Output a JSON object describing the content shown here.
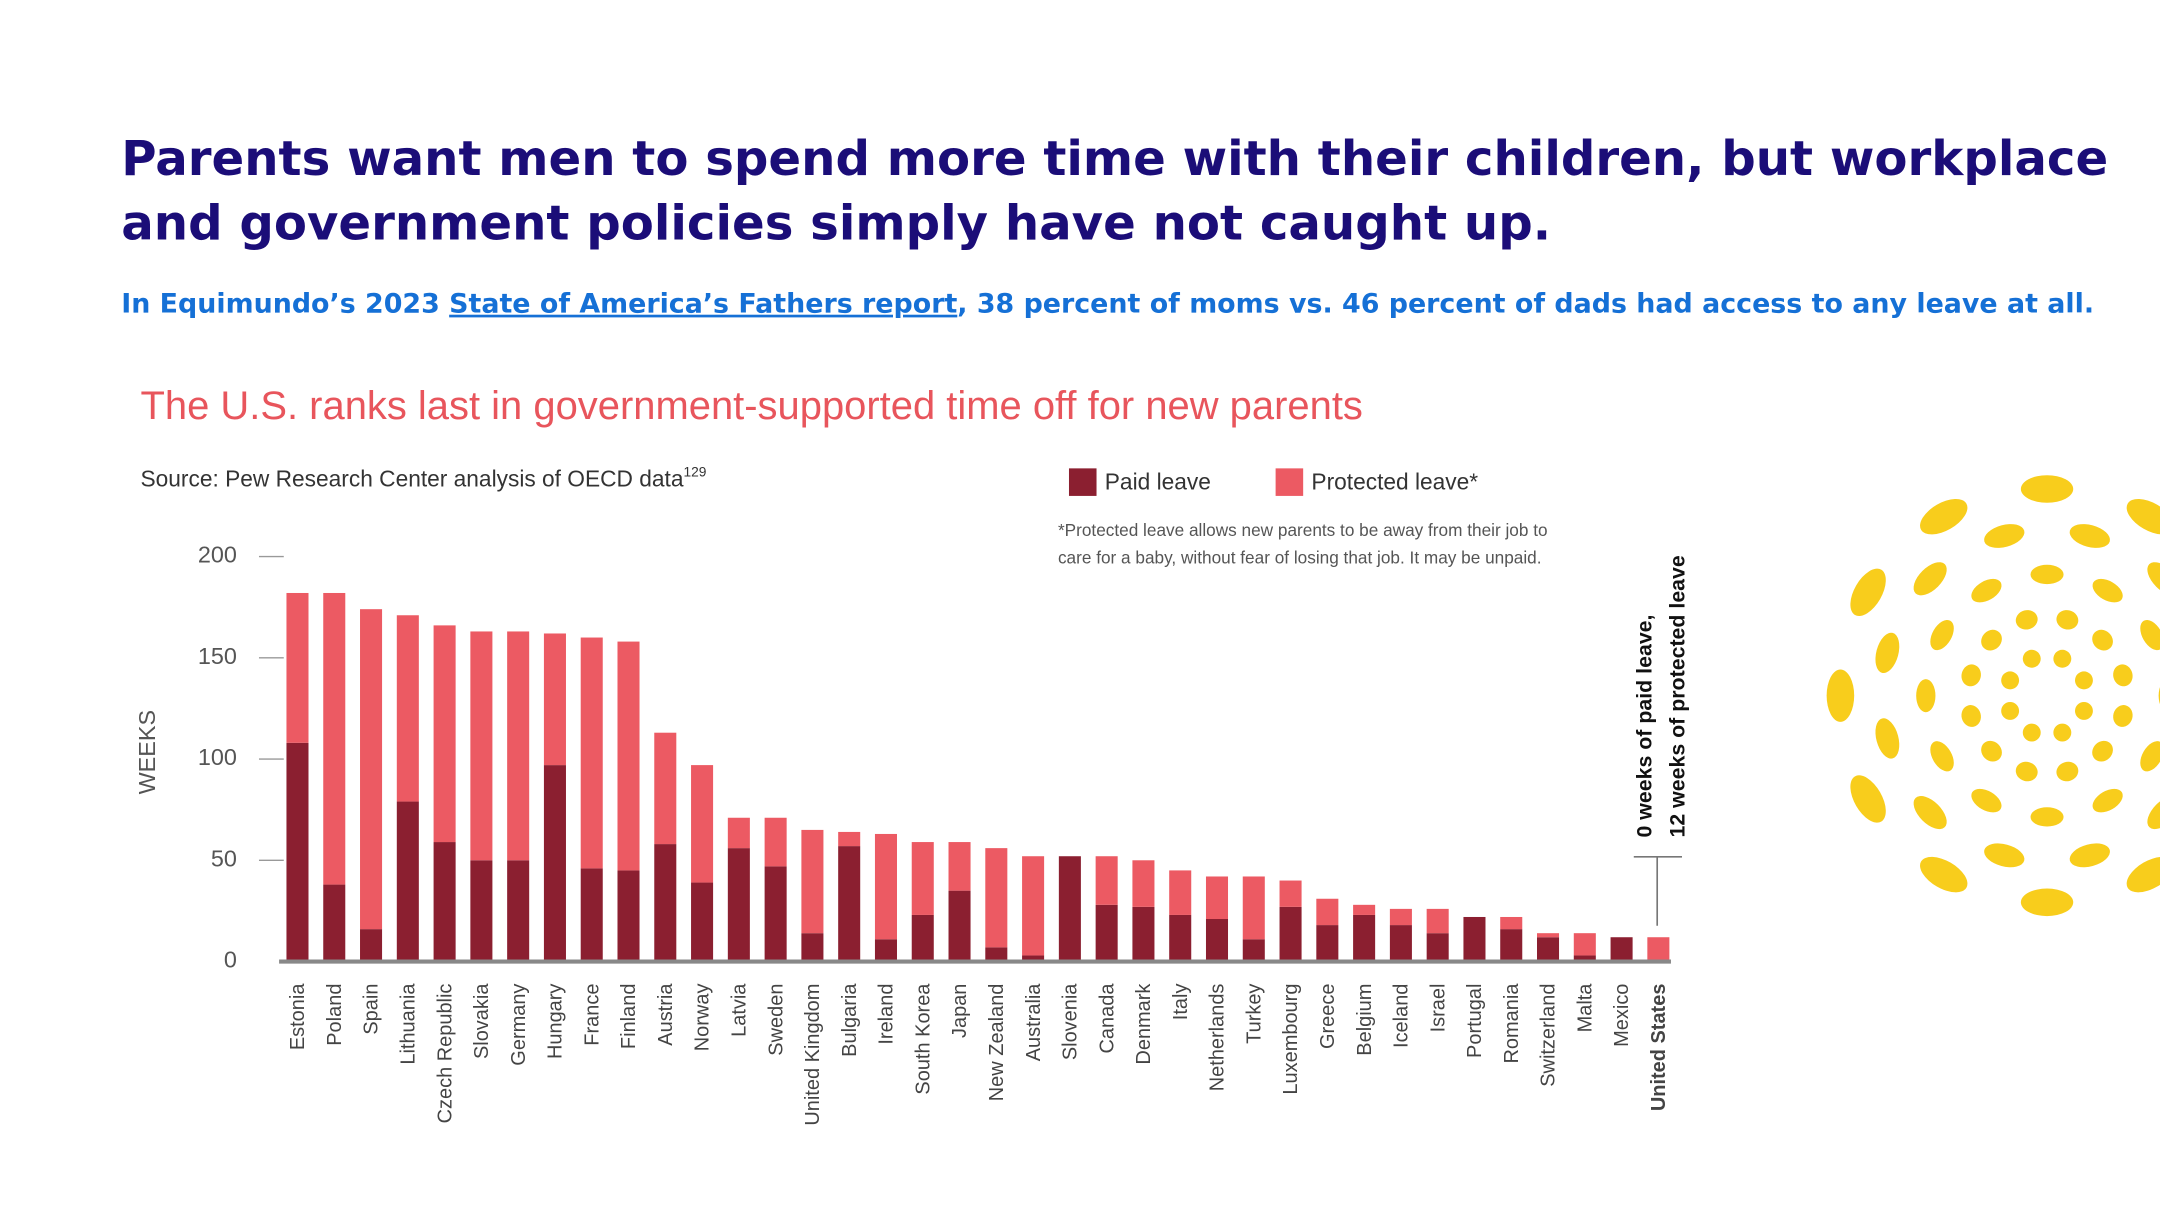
{
  "header": {
    "title": [
      "Parents want men to spend more time with their children, but workplace",
      "and government policies simply have not caught up."
    ],
    "subtitle": {
      "before": "In Equimundo’s 2023 ",
      "link": "State of America’s Fathers report",
      "after": ", 38 percent of moms vs. 46 percent of dads had access to any leave at all."
    }
  },
  "chart_data": {
    "type": "stacked-bar",
    "title": "The U.S. ranks last in government-supported time off for new parents",
    "source": "Source: Pew Research Center analysis of OECD data",
    "source_ref": "129",
    "note": [
      "*Protected leave allows new parents to be away from their job to",
      "care for a baby, without fear of losing that job. It may be unpaid."
    ],
    "y_label": "WEEKS",
    "annotation": [
      "0 weeks of paid leave,",
      "12 weeks of protected leave"
    ],
    "categories": [
      "Estonia",
      "Poland",
      "Spain",
      "Lithuania",
      "Czech Republic",
      "Slovakia",
      "Germany",
      "Hungary",
      "France",
      "Finland",
      "Austria",
      "Norway",
      "Latvia",
      "Sweden",
      "United Kingdom",
      "Bulgaria",
      "Ireland",
      "South Korea",
      "Japan",
      "New Zealand",
      "Australia",
      "Slovenia",
      "Canada",
      "Denmark",
      "Italy",
      "Netherlands",
      "Turkey",
      "Luxembourg",
      "Greece",
      "Belgium",
      "Iceland",
      "Israel",
      "Portugal",
      "Romania",
      "Switzerland",
      "Malta",
      "Mexico",
      "United States"
    ],
    "highlight_index": 37,
    "series": [
      {
        "name": "Paid leave",
        "color": "#8b1f30",
        "values": [
          108,
          38,
          16,
          79,
          59,
          50,
          50,
          97,
          46,
          45,
          58,
          39,
          56,
          47,
          14,
          57,
          11,
          23,
          35,
          7,
          3,
          52,
          28,
          27,
          23,
          21,
          11,
          27,
          18,
          23,
          18,
          14,
          22,
          16,
          12,
          3,
          12,
          0
        ]
      },
      {
        "name": "Protected leave*",
        "color": "#ec5a63",
        "values": [
          74,
          144,
          158,
          92,
          107,
          113,
          113,
          65,
          114,
          113,
          55,
          58,
          15,
          24,
          51,
          7,
          52,
          36,
          24,
          49,
          49,
          0,
          24,
          23,
          22,
          21,
          31,
          13,
          13,
          5,
          8,
          12,
          0,
          6,
          2,
          11,
          0,
          12
        ]
      }
    ],
    "ylim": [
      0,
      200
    ],
    "yticks": [
      0,
      50,
      100,
      150,
      200
    ]
  }
}
